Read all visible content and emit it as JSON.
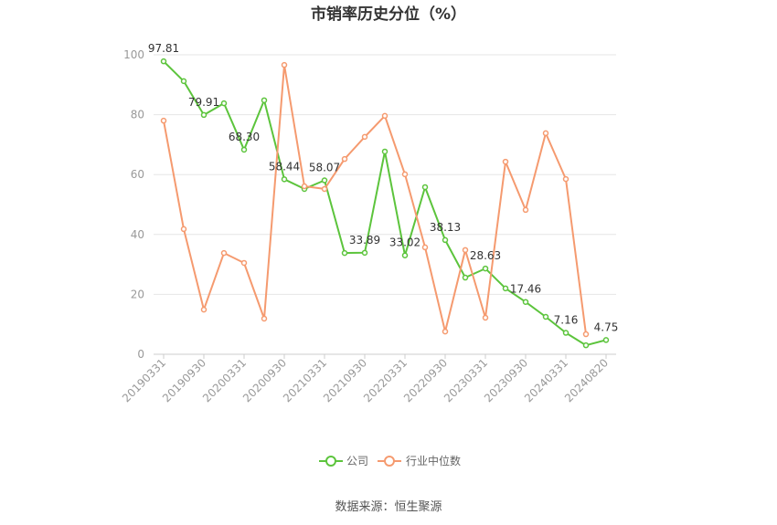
{
  "chart_data": {
    "type": "line",
    "title": "市销率历史分位（%）",
    "x": [
      "20190331",
      "",
      "20190930",
      "",
      "20200331",
      "",
      "20200930",
      "",
      "20210331",
      "",
      "20210930",
      "",
      "20220331",
      "",
      "20220930",
      "",
      "20230331",
      "",
      "20230930",
      "",
      "20240331",
      "",
      "20240820"
    ],
    "yticks": [
      0,
      20,
      40,
      60,
      80,
      100
    ],
    "ylim": [
      0,
      100
    ],
    "grid": true,
    "legend_position": "bottom",
    "series": [
      {
        "name": "公司",
        "color": "#5cc43c",
        "values": [
          97.81,
          91.2,
          79.91,
          83.8,
          68.3,
          84.8,
          58.44,
          55.2,
          58.07,
          33.8,
          33.89,
          67.7,
          33.02,
          55.8,
          38.13,
          25.6,
          28.63,
          22.0,
          17.46,
          12.5,
          7.16,
          3.0,
          4.75
        ],
        "data_labels": [
          "97.81",
          "",
          "79.91",
          "",
          "68.30",
          "",
          "58.44",
          "",
          "58.07",
          "",
          "33.89",
          "",
          "33.02",
          "",
          "38.13",
          "",
          "28.63",
          "",
          "17.46",
          "",
          "7.16",
          "",
          "4.75"
        ]
      },
      {
        "name": "行业中位数",
        "color": "#f59a6f",
        "values": [
          78.0,
          41.8,
          14.9,
          33.8,
          30.5,
          11.9,
          96.6,
          56.1,
          55.2,
          65.2,
          72.6,
          79.6,
          60.1,
          35.7,
          7.6,
          34.8,
          12.2,
          64.3,
          48.2,
          73.8,
          58.5,
          6.7,
          null
        ]
      }
    ]
  },
  "source": "数据来源：恒生聚源"
}
